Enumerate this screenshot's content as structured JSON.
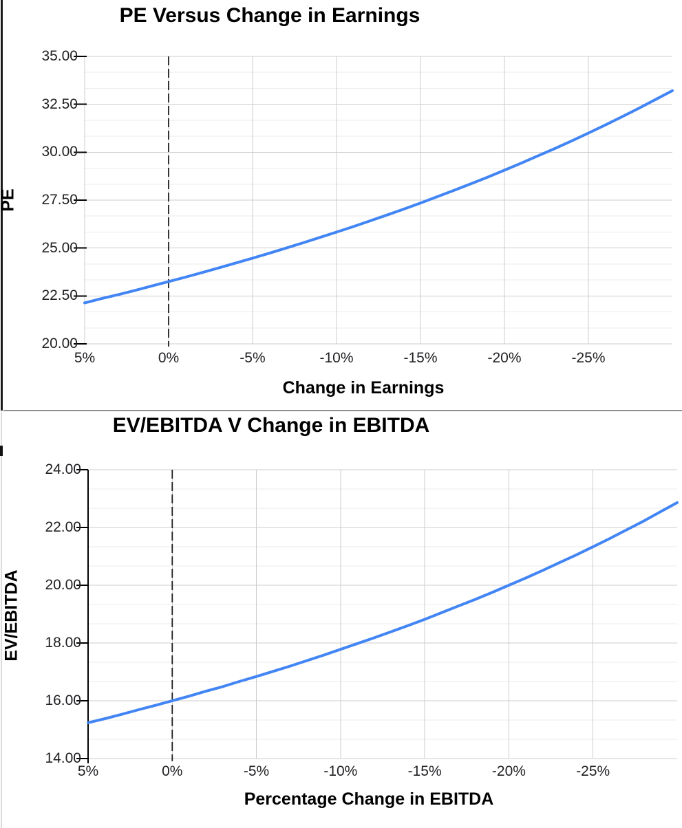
{
  "style": {
    "accent_blue": "#4285f4",
    "major_grid": "#cccccc",
    "minor_grid": "#ebebeb",
    "zero_line": "#1f1f1f",
    "axis_line": "#000000",
    "tick_text": "#202124",
    "title_text": "#000000"
  },
  "chart_data": [
    {
      "type": "line",
      "title": "PE Versus Change in Earnings",
      "xlabel": "Change in Earnings",
      "ylabel": "PE",
      "legend": "none",
      "grid": "major-and-minor-horizontal",
      "x_tick_labels": [
        "5%",
        "0%",
        "-5%",
        "-10%",
        "-15%",
        "-20%",
        "-25%"
      ],
      "x_tick_values": [
        0.05,
        0,
        -0.05,
        -0.1,
        -0.15,
        -0.2,
        -0.25
      ],
      "y_tick_labels": [
        "35.00",
        "32.50",
        "30.00",
        "27.50",
        "25.00",
        "22.50",
        "20.00"
      ],
      "y_tick_values": [
        35,
        32.5,
        30,
        27.5,
        25,
        22.5,
        20
      ],
      "x_range": [
        0.05,
        -0.3
      ],
      "y_range": [
        20,
        35
      ],
      "minor_divisions": 3,
      "zero_reference_line_x": 0,
      "line_color": "#4285f4",
      "series": [
        {
          "name": "PE",
          "x": [
            0.05,
            0.04,
            0.03,
            0.02,
            0.01,
            0,
            -0.01,
            -0.02,
            -0.03,
            -0.04,
            -0.05,
            -0.06,
            -0.07,
            -0.08,
            -0.09,
            -0.1,
            -0.11,
            -0.12,
            -0.13,
            -0.14,
            -0.15,
            -0.16,
            -0.17,
            -0.18,
            -0.19,
            -0.2,
            -0.21,
            -0.22,
            -0.23,
            -0.24,
            -0.25,
            -0.26,
            -0.27,
            -0.28,
            -0.29,
            -0.3
          ],
          "y": [
            22.14,
            22.36,
            22.57,
            22.79,
            23.02,
            23.25,
            23.48,
            23.72,
            23.97,
            24.22,
            24.47,
            24.73,
            25.0,
            25.27,
            25.55,
            25.83,
            26.12,
            26.42,
            26.72,
            27.03,
            27.35,
            27.68,
            28.01,
            28.35,
            28.7,
            29.06,
            29.43,
            29.81,
            30.19,
            30.59,
            31.0,
            31.42,
            31.85,
            32.29,
            32.75,
            33.21
          ]
        }
      ]
    },
    {
      "type": "line",
      "title": "EV/EBITDA V Change in EBITDA",
      "xlabel": "Percentage Change in EBITDA",
      "ylabel": "EV/EBITDA",
      "legend": "none",
      "grid": "major-and-minor-horizontal",
      "x_tick_labels": [
        "5%",
        "0%",
        "-5%",
        "-10%",
        "-15%",
        "-20%",
        "-25%"
      ],
      "x_tick_values": [
        0.05,
        0,
        -0.05,
        -0.1,
        -0.15,
        -0.2,
        -0.25
      ],
      "y_tick_labels": [
        "24.00",
        "22.00",
        "20.00",
        "18.00",
        "16.00",
        "14.00"
      ],
      "y_tick_values": [
        24,
        22,
        20,
        18,
        16,
        14
      ],
      "x_range": [
        0.05,
        -0.3
      ],
      "y_range": [
        14,
        24
      ],
      "minor_divisions": 3,
      "zero_reference_line_x": 0,
      "line_color": "#4285f4",
      "series": [
        {
          "name": "EV/EBITDA",
          "x": [
            0.05,
            0.04,
            0.03,
            0.02,
            0.01,
            0,
            -0.01,
            -0.02,
            -0.03,
            -0.04,
            -0.05,
            -0.06,
            -0.07,
            -0.08,
            -0.09,
            -0.1,
            -0.11,
            -0.12,
            -0.13,
            -0.14,
            -0.15,
            -0.16,
            -0.17,
            -0.18,
            -0.19,
            -0.2,
            -0.21,
            -0.22,
            -0.23,
            -0.24,
            -0.25,
            -0.26,
            -0.27,
            -0.28,
            -0.29,
            -0.3
          ],
          "y": [
            15.24,
            15.38,
            15.53,
            15.69,
            15.84,
            16.0,
            16.16,
            16.33,
            16.49,
            16.67,
            16.84,
            17.02,
            17.2,
            17.39,
            17.58,
            17.78,
            17.98,
            18.18,
            18.39,
            18.6,
            18.82,
            19.05,
            19.28,
            19.51,
            19.75,
            20.0,
            20.25,
            20.51,
            20.78,
            21.05,
            21.33,
            21.62,
            21.92,
            22.22,
            22.54,
            22.86
          ]
        }
      ]
    }
  ]
}
